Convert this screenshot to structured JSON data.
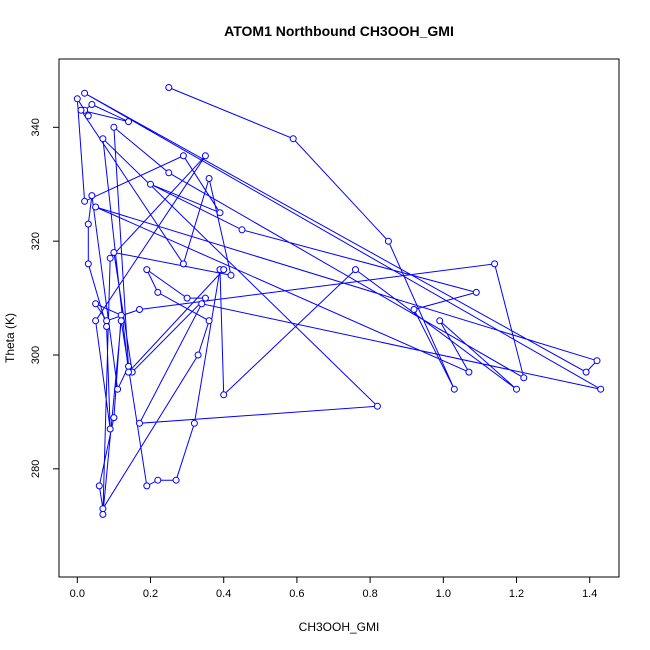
{
  "chart_data": {
    "type": "line",
    "title": "ATOM1 Northbound CH3OOH_GMI",
    "xlabel": "CH3OOH_GMI",
    "ylabel": "Theta (K)",
    "xlim": [
      -0.05,
      1.48
    ],
    "ylim": [
      261,
      352
    ],
    "x_ticks": [
      0.0,
      0.2,
      0.4,
      0.6,
      0.8,
      1.0,
      1.2,
      1.4
    ],
    "x_tick_labels": [
      "0.0",
      "0.2",
      "0.4",
      "0.6",
      "0.8",
      "1.0",
      "1.2",
      "1.4"
    ],
    "y_ticks": [
      280,
      300,
      320,
      340
    ],
    "y_tick_labels": [
      "280",
      "300",
      "320",
      "340"
    ],
    "grid": false,
    "legend": "none",
    "markers": "open-circle",
    "color": "#0000ff",
    "series": [
      {
        "x": [
          0.25,
          0.59,
          0.85,
          1.03,
          0.92,
          1.09,
          0.45,
          0.2,
          0.39,
          0.29,
          0.02,
          0.0,
          0.03,
          0.02,
          0.04,
          0.14,
          0.01,
          0.29,
          0.36,
          0.42,
          0.1,
          0.15,
          0.35,
          0.3,
          0.19,
          0.22,
          0.36,
          0.33,
          0.07,
          0.06,
          0.1,
          0.12,
          0.05,
          0.08,
          0.17,
          1.14,
          1.22,
          0.25,
          0.1,
          0.14,
          0.11,
          0.04,
          0.03,
          0.03,
          0.08,
          0.09,
          0.05,
          0.35,
          0.09,
          0.07,
          0.12,
          0.19,
          0.22,
          0.27,
          0.32,
          0.39,
          0.4,
          0.76,
          1.2,
          0.99,
          1.07,
          0.05,
          1.42,
          1.39,
          0.02,
          1.43,
          0.34,
          0.17,
          0.82,
          0.07,
          0.14,
          0.4
        ],
        "y": [
          347,
          338,
          320,
          294,
          308,
          311,
          322,
          330,
          325,
          335,
          327,
          345,
          342,
          343,
          344,
          341,
          343,
          316,
          331,
          314,
          318,
          297,
          310,
          310,
          315,
          311,
          306,
          300,
          273,
          277,
          289,
          307,
          309,
          306,
          308,
          316,
          296,
          332,
          340,
          298,
          294,
          328,
          323,
          316,
          305,
          287,
          306,
          335,
          317,
          272,
          306,
          277,
          278,
          278,
          288,
          315,
          293,
          315,
          294,
          306,
          297,
          326,
          299,
          297,
          346,
          294,
          309,
          288,
          291,
          338,
          297,
          315
        ]
      }
    ]
  }
}
